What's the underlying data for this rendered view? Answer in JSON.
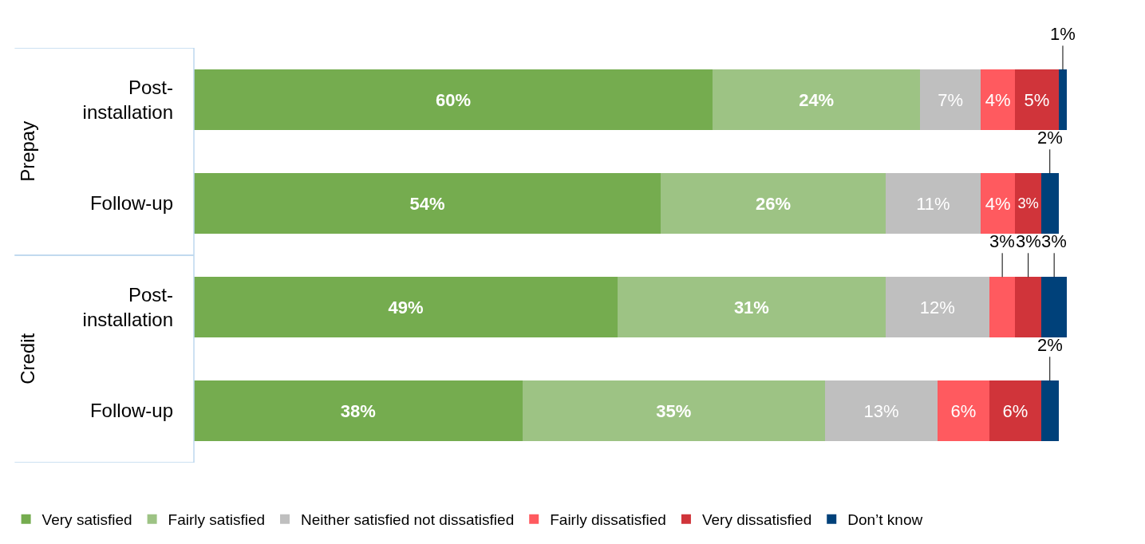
{
  "chart_data": {
    "type": "bar",
    "orientation": "horizontal",
    "stacked": true,
    "legend": "bottom",
    "categories": [
      "Post-installation",
      "Follow-up",
      "Post-installation",
      "Follow-up"
    ],
    "annotations": [
      "Prepay",
      "Credit"
    ],
    "series": [
      {
        "name": "Very satisfied",
        "color": "#75ac4f",
        "values": [
          60,
          54,
          49,
          38
        ],
        "value_labels": [
          "60%",
          "54%",
          "49%",
          "38%"
        ]
      },
      {
        "name": "Fairly satisfied",
        "color": "#9dc384",
        "values": [
          24,
          26,
          31,
          35
        ],
        "value_labels": [
          "24%",
          "26%",
          "31%",
          "35%"
        ]
      },
      {
        "name": "Neither satisfied not dissatisfied",
        "color": "#bfbfbf",
        "values": [
          7,
          11,
          12,
          13
        ],
        "value_labels": [
          "7%",
          "11%",
          "12%",
          "13%"
        ]
      },
      {
        "name": "Fairly dissatisfied",
        "color": "#ff5a5f",
        "values": [
          4,
          4,
          3,
          6
        ],
        "value_labels": [
          "4%",
          "4%",
          "3%",
          "6%"
        ]
      },
      {
        "name": "Very dissatisfied",
        "color": "#d0343a",
        "values": [
          5,
          3,
          3,
          6
        ],
        "value_labels": [
          "5%",
          "3%",
          "3%",
          "6%"
        ]
      },
      {
        "name": "Don’t know",
        "color": "#00417a",
        "values": [
          1,
          2,
          3,
          2
        ],
        "value_labels": [
          "1%",
          "2%",
          "3%",
          "2%"
        ]
      }
    ]
  }
}
